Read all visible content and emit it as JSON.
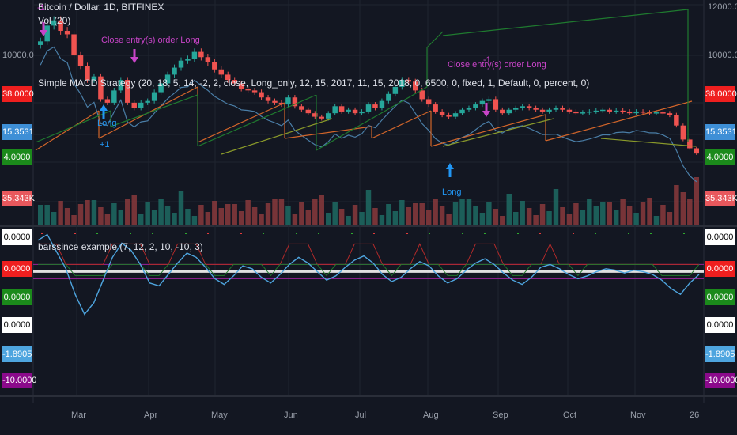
{
  "header": {
    "title": "Bitcoin / Dollar, 1D, BITFINEX",
    "volume": "Vol (20)",
    "strategy": "Simple MACD Strategy (20, 18, 5, 14, -2, 2, close, Long_only, 12, 15, 2017, 11, 15, 2018, 0, 6500, 0, fixed, 1, Default, 0, percent, 0)"
  },
  "oscillator": {
    "title": "barssince example (7, 12, 2, 10, -10, 3)"
  },
  "price_axis": [
    "12000.0",
    "10000.0"
  ],
  "price_tags": [
    {
      "text": "38.0000",
      "color": "#ef1f1f",
      "text_color": "#ffffff"
    },
    {
      "text": "15.3531",
      "color": "#3e8fd6",
      "text_color": "#ffffff"
    },
    {
      "text": "4.0000",
      "color": "#1b8a1b",
      "text_color": "#ffffff"
    },
    {
      "text": "35.343K",
      "color": "#e8585d",
      "text_color": "#ffffff"
    }
  ],
  "osc_tags": [
    {
      "text": "0.0000",
      "color": "#ffffff",
      "text_color": "#000000"
    },
    {
      "text": "0.0000",
      "color": "#ef1f1f",
      "text_color": "#ffffff"
    },
    {
      "text": "0.0000",
      "color": "#1b8a1b",
      "text_color": "#ffffff"
    },
    {
      "text": "0.0000",
      "color": "#ffffff",
      "text_color": "#000000"
    },
    {
      "text": "-1.8905",
      "color": "#4ea5df",
      "text_color": "#ffffff"
    },
    {
      "text": "-10.0000",
      "color": "#8b0a8b",
      "text_color": "#ffffff"
    }
  ],
  "markers": {
    "close_label": "Close entry(s) order Long",
    "long_label": "Long",
    "minus_one": "-1",
    "plus_one": "+1"
  },
  "colors": {
    "background": "#131722",
    "up_candle": "#26a69a",
    "down_candle": "#ef5350",
    "macd_line": "#4a7ea7",
    "trend_orange": "#d2652a",
    "trend_green": "#1f7a2f",
    "marker_purple": "#c844c8",
    "marker_blue": "#2196f3"
  },
  "chart_data": [
    {
      "type": "candlestick",
      "title": "Bitcoin / Dollar, 1D, BITFINEX",
      "x_axis": [
        "Mar",
        "Apr",
        "May",
        "Jun",
        "Jul",
        "Aug",
        "Sep",
        "Oct",
        "Nov",
        "26"
      ],
      "ylim": [
        3600,
        12400
      ],
      "y_ticks": [
        10000,
        12000
      ],
      "close_series": [
        10400,
        11300,
        11600,
        11000,
        10800,
        9600,
        9000,
        8200,
        8400,
        7100,
        6900,
        7600,
        8200,
        6900,
        6600,
        6900,
        7000,
        7500,
        8000,
        8500,
        8900,
        9300,
        9400,
        9800,
        9500,
        9200,
        8800,
        8500,
        8200,
        8000,
        7700,
        7600,
        7500,
        7200,
        7000,
        6900,
        6800,
        7200,
        6700,
        6500,
        6300,
        6100,
        6000,
        6300,
        6700,
        6400,
        6500,
        6300,
        6400,
        6800,
        6600,
        7000,
        7400,
        7800,
        8200,
        8100,
        7600,
        7100,
        6800,
        6400,
        6200,
        6100,
        6300,
        6500,
        6600,
        6800,
        7000,
        7100,
        6500,
        6300,
        6500,
        6600,
        6700,
        6600,
        6500,
        6400,
        6500,
        6600,
        6500,
        6400,
        6300,
        6350,
        6400,
        6450,
        6500,
        6400,
        6450,
        6400,
        6300,
        6400,
        6350,
        6300,
        6350,
        6300,
        6200,
        5600,
        4800,
        4300,
        4000
      ]
    },
    {
      "type": "line",
      "title": "barssince example (7, 12, 2, 10, -10, 3)",
      "ylim": [
        -10,
        3
      ],
      "levels": [
        2,
        0,
        -10
      ],
      "series": [
        {
          "values": [
            2.2,
            2.6,
            1.4,
            0.2,
            -1.6,
            -3.0,
            -2.2,
            -0.6,
            1.0,
            2.0,
            1.5,
            0.5,
            -0.8,
            -1.0,
            -0.2,
            0.6,
            1.3,
            1.0,
            0.3,
            -0.5,
            -0.9,
            -0.3,
            0.4,
            0.2,
            -0.4,
            -0.8,
            -0.2,
            0.5,
            1.0,
            0.6,
            0.0,
            -0.6,
            -0.3,
            0.3,
            0.8,
            1.1,
            0.6,
            -0.2,
            -0.7,
            -0.4,
            0.2,
            0.7,
            0.4,
            -0.3,
            -0.8,
            -0.5,
            0.1,
            0.6,
            0.9,
            0.5,
            -0.1,
            -0.6,
            -0.9,
            -0.4,
            0.3,
            0.5,
            0.2,
            -0.2,
            -0.5,
            -0.3,
            0.0,
            0.2,
            0.1,
            -0.1,
            0.1,
            0.0,
            -0.2,
            -0.6,
            -1.2,
            -1.6,
            -0.8,
            -0.2
          ]
        }
      ]
    }
  ]
}
